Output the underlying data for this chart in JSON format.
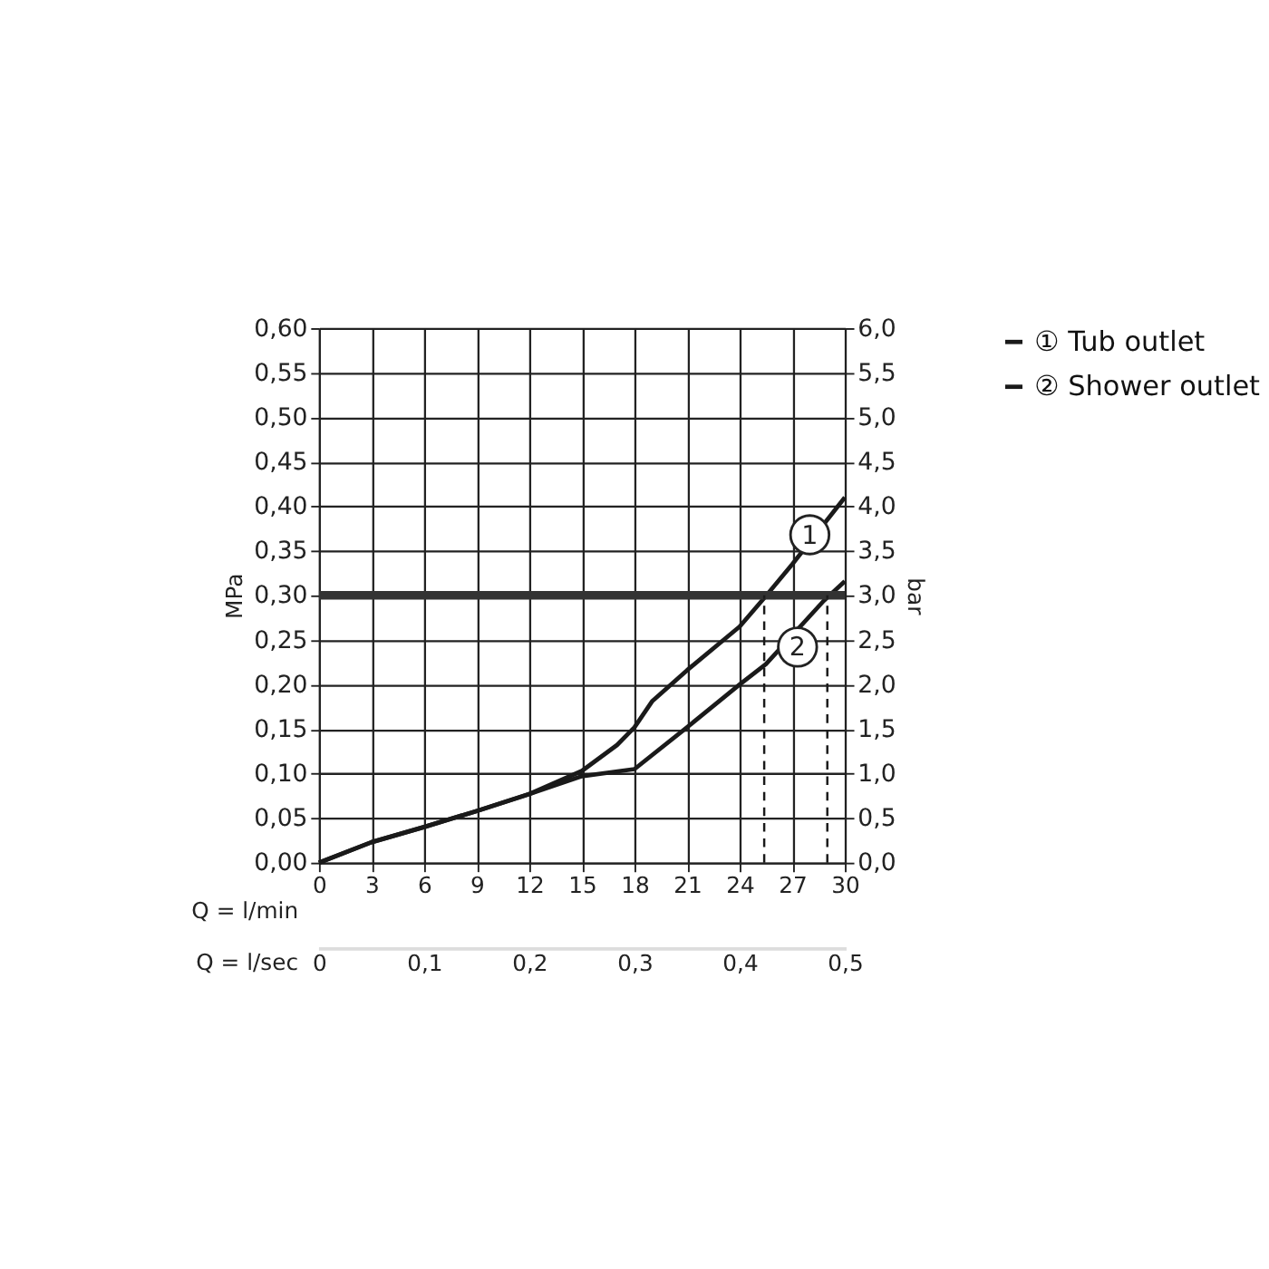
{
  "chart_data": {
    "type": "line",
    "xlabel": "Q = l/min",
    "x2label": "Q = l/sec",
    "ylabel": "MPa",
    "y2label": "bar",
    "xlim": [
      0,
      30
    ],
    "xticks": [
      0,
      3,
      6,
      9,
      12,
      15,
      18,
      21,
      24,
      27,
      30
    ],
    "x2lim": [
      0,
      0.5
    ],
    "x2ticks": [
      {
        "value": 0,
        "label": "0"
      },
      {
        "value": 0.1,
        "label": "0,1"
      },
      {
        "value": 0.2,
        "label": "0,2"
      },
      {
        "value": 0.3,
        "label": "0,3"
      },
      {
        "value": 0.4,
        "label": "0,4"
      },
      {
        "value": 0.5,
        "label": "0,5"
      }
    ],
    "ylim": [
      0,
      0.6
    ],
    "yticks": [
      {
        "value": 0,
        "label": "0,00"
      },
      {
        "value": 0.05,
        "label": "0,05"
      },
      {
        "value": 0.1,
        "label": "0,10"
      },
      {
        "value": 0.15,
        "label": "0,15"
      },
      {
        "value": 0.2,
        "label": "0,20"
      },
      {
        "value": 0.25,
        "label": "0,25"
      },
      {
        "value": 0.3,
        "label": "0,30"
      },
      {
        "value": 0.35,
        "label": "0,35"
      },
      {
        "value": 0.4,
        "label": "0,40"
      },
      {
        "value": 0.45,
        "label": "0,45"
      },
      {
        "value": 0.5,
        "label": "0,50"
      },
      {
        "value": 0.55,
        "label": "0,55"
      },
      {
        "value": 0.6,
        "label": "0,60"
      }
    ],
    "y2lim": [
      0,
      6
    ],
    "y2ticks": [
      {
        "value": 0,
        "label": "0,0"
      },
      {
        "value": 0.5,
        "label": "0,5"
      },
      {
        "value": 1,
        "label": "1,0"
      },
      {
        "value": 1.5,
        "label": "1,5"
      },
      {
        "value": 2,
        "label": "2,0"
      },
      {
        "value": 2.5,
        "label": "2,5"
      },
      {
        "value": 3,
        "label": "3,0"
      },
      {
        "value": 3.5,
        "label": "3,5"
      },
      {
        "value": 4,
        "label": "4,0"
      },
      {
        "value": 4.5,
        "label": "4,5"
      },
      {
        "value": 5,
        "label": "5,0"
      },
      {
        "value": 5.5,
        "label": "5,5"
      },
      {
        "value": 6,
        "label": "6,0"
      }
    ],
    "grid": true,
    "legend": "top right",
    "marker": "none",
    "line_style": "solid",
    "series": [
      {
        "name": "① Tub outlet",
        "color": "#1a1a1a",
        "x": [
          0,
          3,
          6,
          9,
          12,
          15,
          17,
          18,
          19,
          21,
          24,
          25.4,
          27,
          30
        ],
        "values": [
          0,
          0.023,
          0.04,
          0.058,
          0.077,
          0.103,
          0.132,
          0.152,
          0.181,
          0.216,
          0.265,
          0.297,
          0.335,
          0.41
        ]
      },
      {
        "name": "② Shower outlet",
        "color": "#1a1a1a",
        "x": [
          0,
          3,
          6,
          9,
          12,
          15,
          18,
          21,
          24,
          25.5,
          28.8,
          30
        ],
        "values": [
          0,
          0.023,
          0.04,
          0.058,
          0.077,
          0.097,
          0.105,
          0.152,
          0.2,
          0.223,
          0.294,
          0.316
        ]
      }
    ],
    "annotations": [
      {
        "text": "1",
        "x": 28.0,
        "y": 0.368
      },
      {
        "text": "2",
        "x": 27.3,
        "y": 0.242
      }
    ],
    "ref_lines": [
      {
        "axis": "y",
        "value": 0.3,
        "color": "#333333",
        "line_style": "solid"
      },
      {
        "axis": "x",
        "value": 25.4,
        "color": "#1a1a1a",
        "line_style": "dashed"
      },
      {
        "axis": "x",
        "value": 29.0,
        "color": "#1a1a1a",
        "line_style": "dashed"
      }
    ]
  }
}
